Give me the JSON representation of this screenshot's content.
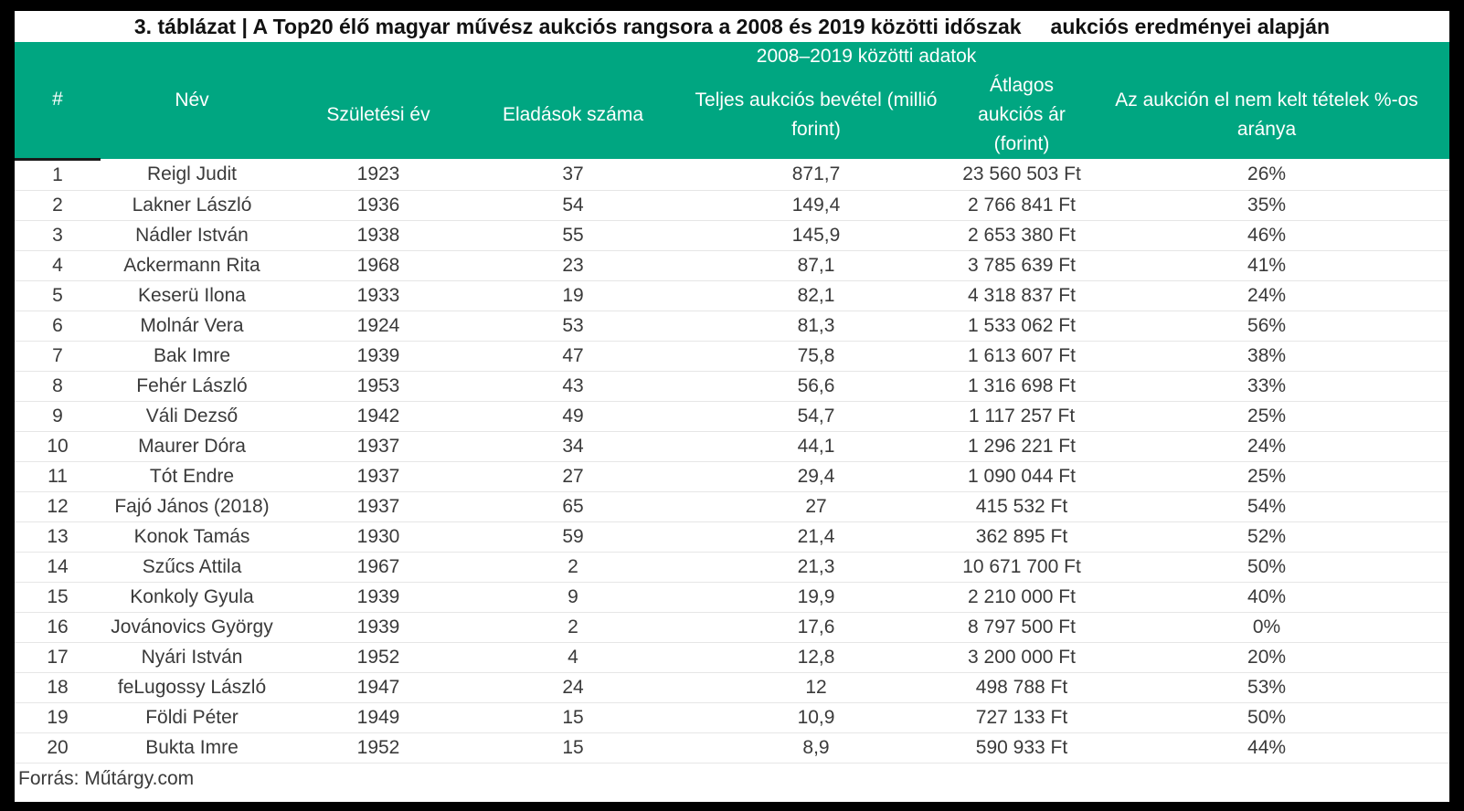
{
  "title": "3. táblázat | A Top20 élő magyar művész aukciós rangsora a 2008 és 2019 közötti időszak     aukciós eredményei alapján",
  "header": {
    "group_label": "2008–2019 közötti adatok",
    "columns": [
      "#",
      "Név",
      "Születési év",
      "Eladások száma",
      "Teljes aukciós bevétel (millió forint)",
      "Átlagos aukciós ár (forint)",
      "Az aukción el nem kelt tételek %-os aránya"
    ]
  },
  "colors": {
    "header_bg": "#00a681",
    "header_text": "#ffffff",
    "body_text": "#3a3a3a"
  },
  "rows": [
    [
      "1",
      "Reigl Judit",
      "1923",
      "37",
      "871,7",
      "23 560 503 Ft",
      "26%"
    ],
    [
      "2",
      "Lakner László",
      "1936",
      "54",
      "149,4",
      "2 766 841 Ft",
      "35%"
    ],
    [
      "3",
      "Nádler István",
      "1938",
      "55",
      "145,9",
      "2 653 380 Ft",
      "46%"
    ],
    [
      "4",
      "Ackermann Rita",
      "1968",
      "23",
      "87,1",
      "3 785 639 Ft",
      "41%"
    ],
    [
      "5",
      "Keserü Ilona",
      "1933",
      "19",
      "82,1",
      "4 318 837 Ft",
      "24%"
    ],
    [
      "6",
      "Molnár Vera",
      "1924",
      "53",
      "81,3",
      "1 533 062 Ft",
      "56%"
    ],
    [
      "7",
      "Bak Imre",
      "1939",
      "47",
      "75,8",
      "1 613 607 Ft",
      "38%"
    ],
    [
      "8",
      "Fehér László",
      "1953",
      "43",
      "56,6",
      "1 316 698 Ft",
      "33%"
    ],
    [
      "9",
      "Váli Dezső",
      "1942",
      "49",
      "54,7",
      "1 117 257 Ft",
      "25%"
    ],
    [
      "10",
      "Maurer Dóra",
      "1937",
      "34",
      "44,1",
      "1 296 221 Ft",
      "24%"
    ],
    [
      "11",
      "Tót Endre",
      "1937",
      "27",
      "29,4",
      "1 090 044 Ft",
      "25%"
    ],
    [
      "12",
      "Fajó János (2018)",
      "1937",
      "65",
      "27",
      "415 532 Ft",
      "54%"
    ],
    [
      "13",
      "Konok Tamás",
      "1930",
      "59",
      "21,4",
      "362 895 Ft",
      "52%"
    ],
    [
      "14",
      "Szűcs Attila",
      "1967",
      "2",
      "21,3",
      "10 671 700 Ft",
      "50%"
    ],
    [
      "15",
      "Konkoly Gyula",
      "1939",
      "9",
      "19,9",
      "2 210 000 Ft",
      "40%"
    ],
    [
      "16",
      "Jovánovics György",
      "1939",
      "2",
      "17,6",
      "8 797 500 Ft",
      "0%"
    ],
    [
      "17",
      "Nyári István",
      "1952",
      "4",
      "12,8",
      "3 200 000 Ft",
      "20%"
    ],
    [
      "18",
      "feLugossy László",
      "1947",
      "24",
      "12",
      "498 788 Ft",
      "53%"
    ],
    [
      "19",
      "Földi Péter",
      "1949",
      "15",
      "10,9",
      "727 133 Ft",
      "50%"
    ],
    [
      "20",
      "Bukta Imre",
      "1952",
      "15",
      "8,9",
      "590 933 Ft",
      "44%"
    ]
  ],
  "source": "Forrás: Műtárgy.com"
}
